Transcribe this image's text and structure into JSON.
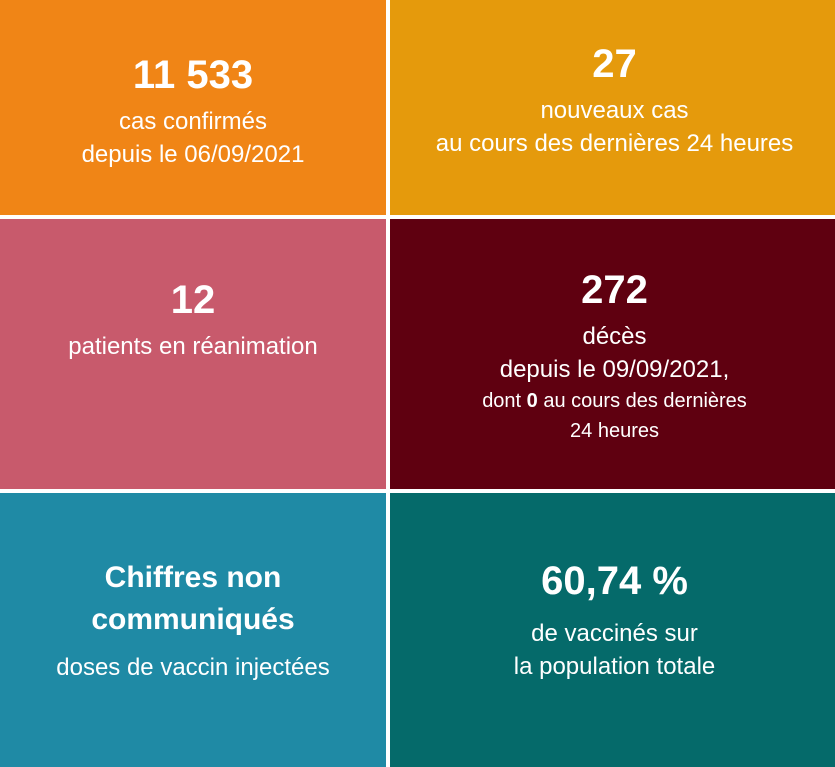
{
  "tiles": {
    "cases": {
      "value": "11 533",
      "line1": "cas confirmés",
      "line2": "depuis le 06/09/2021",
      "color": "#f08516"
    },
    "new_cases": {
      "value": "27",
      "line1": "nouveaux cas",
      "line2": "au cours des dernières 24 heures",
      "color": "#e59a0c"
    },
    "icu": {
      "value": "12",
      "line1": "patients en réanimation",
      "color": "#c85a6c"
    },
    "deaths": {
      "value": "272",
      "line1": "décès",
      "line2": "depuis le 09/09/2021,",
      "line3_prefix": "dont ",
      "line3_bold": "0",
      "line3_suffix": " au cours des dernières",
      "line4": "24 heures",
      "color": "#5f0010"
    },
    "doses": {
      "title_line1": "Chiffres non",
      "title_line2": "communiqués",
      "line1": "doses de vaccin injectées",
      "color": "#1f8aa5"
    },
    "vaccinated": {
      "value": "60,74 %",
      "line1": "de vaccinés sur",
      "line2": "la population totale",
      "color": "#056a6a"
    }
  }
}
